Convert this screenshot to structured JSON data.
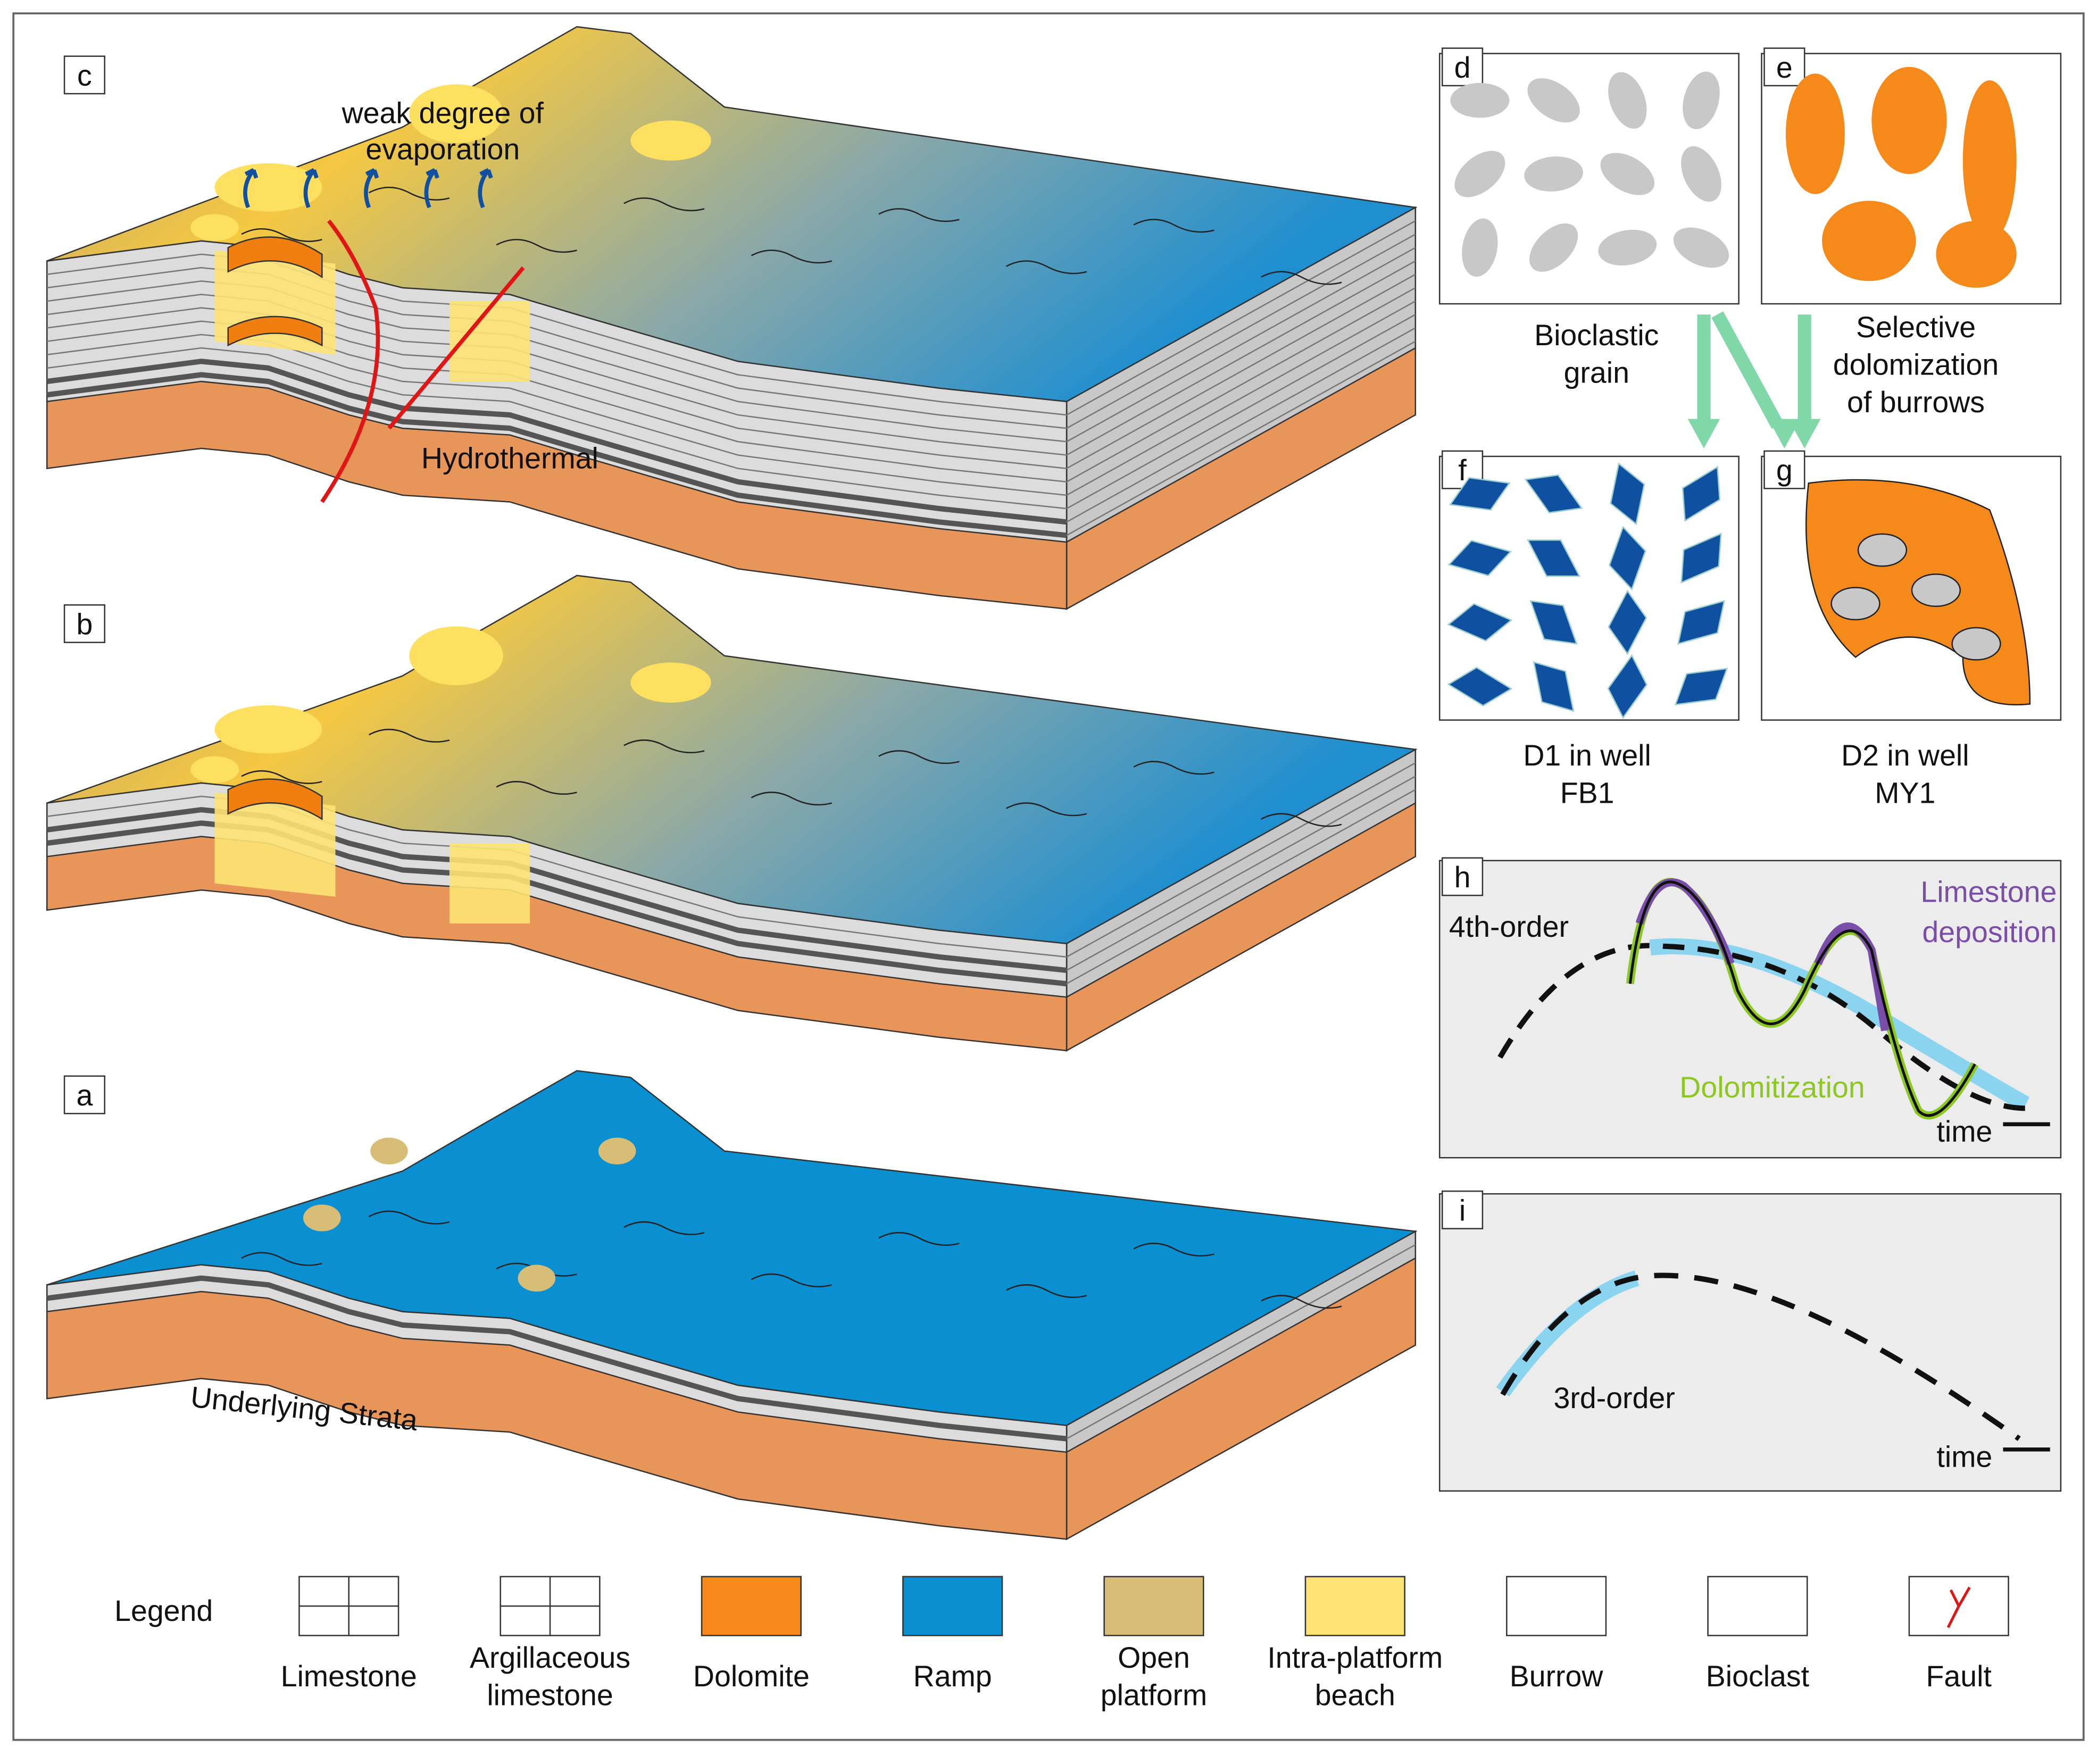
{
  "blocks": [
    {
      "label": "c",
      "annotation": [
        "weak degree of",
        "evaporation"
      ],
      "note": "Hydrothermal"
    },
    {
      "label": "b"
    },
    {
      "label": "a",
      "note": "Underlying Strata"
    }
  ],
  "thin_sections": [
    {
      "label": "d",
      "caption": [
        "Bioclastic",
        "grain"
      ]
    },
    {
      "label": "e",
      "caption": [
        "Selective",
        "dolomization",
        "of burrows"
      ]
    },
    {
      "label": "f",
      "caption": [
        "D1 in well",
        "FB1"
      ]
    },
    {
      "label": "g",
      "caption": [
        "D2 in well",
        "MY1"
      ]
    }
  ],
  "curves": [
    {
      "label": "h",
      "order": "4th-order",
      "upper": [
        "Limestone",
        "deposition"
      ],
      "lower": "Dolomitization",
      "axis": "time"
    },
    {
      "label": "i",
      "order": "3rd-order",
      "axis": "time"
    }
  ],
  "legend": {
    "title": "Legend",
    "items": [
      {
        "label": [
          "Limestone"
        ]
      },
      {
        "label": [
          "Argillaceous",
          "limestone"
        ]
      },
      {
        "label": [
          "Dolomite"
        ]
      },
      {
        "label": [
          "Ramp"
        ]
      },
      {
        "label": [
          "Open",
          "platform"
        ]
      },
      {
        "label": [
          "Intra-platform",
          "beach"
        ]
      },
      {
        "label": [
          "Burrow"
        ]
      },
      {
        "label": [
          "Bioclast"
        ]
      },
      {
        "label": [
          "Fault"
        ]
      }
    ]
  }
}
